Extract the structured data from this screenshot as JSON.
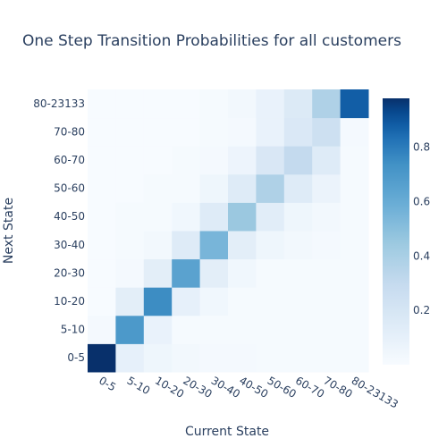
{
  "chart_data": {
    "type": "heatmap",
    "title": "One Step Transition Probabilities for all customers",
    "xlabel": "Current State",
    "ylabel": "Next State",
    "x_categories": [
      "0-5",
      "5-10",
      "10-20",
      "20-30",
      "30-40",
      "40-50",
      "50-60",
      "60-70",
      "70-80",
      "80-23133"
    ],
    "y_categories": [
      "0-5",
      "5-10",
      "10-20",
      "20-30",
      "30-40",
      "40-50",
      "50-60",
      "60-70",
      "70-80",
      "80-23133"
    ],
    "z": [
      [
        0.98,
        0.1,
        0.05,
        0.03,
        0.02,
        0.02,
        0.01,
        0.01,
        0.01,
        0.01
      ],
      [
        0.02,
        0.7,
        0.08,
        0.01,
        0.01,
        0.01,
        0.01,
        0.01,
        0.01,
        0.01
      ],
      [
        0.0,
        0.12,
        0.75,
        0.1,
        0.04,
        0.01,
        0.01,
        0.01,
        0.01,
        0.01
      ],
      [
        0.0,
        0.02,
        0.12,
        0.65,
        0.12,
        0.04,
        0.01,
        0.01,
        0.01,
        0.01
      ],
      [
        0.0,
        0.01,
        0.03,
        0.15,
        0.55,
        0.12,
        0.05,
        0.03,
        0.02,
        0.01
      ],
      [
        0.0,
        0.01,
        0.01,
        0.04,
        0.15,
        0.45,
        0.13,
        0.05,
        0.03,
        0.01
      ],
      [
        0.0,
        0.0,
        0.01,
        0.01,
        0.05,
        0.15,
        0.38,
        0.15,
        0.07,
        0.01
      ],
      [
        0.0,
        0.0,
        0.0,
        0.01,
        0.02,
        0.06,
        0.18,
        0.3,
        0.15,
        0.01
      ],
      [
        0.0,
        0.0,
        0.0,
        0.0,
        0.01,
        0.02,
        0.08,
        0.17,
        0.25,
        0.02
      ],
      [
        0.0,
        0.0,
        0.0,
        0.0,
        0.01,
        0.03,
        0.08,
        0.16,
        0.38,
        0.88
      ]
    ],
    "zmin": 0,
    "zmax": 0.98,
    "colorscale": "Blues",
    "colorbar_ticks": [
      "0.2",
      "0.4",
      "0.6",
      "0.8"
    ],
    "colorbar_tick_values": [
      0.2,
      0.4,
      0.6,
      0.8
    ]
  }
}
